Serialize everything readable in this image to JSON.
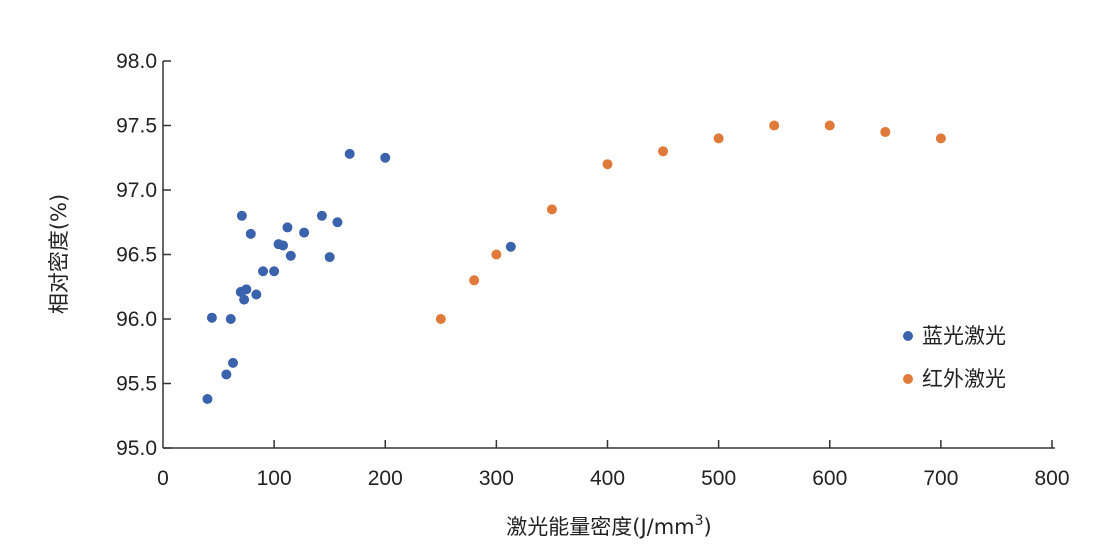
{
  "chart_data": {
    "type": "scatter",
    "title": "",
    "xlabel": "激光能量密度(J/mm",
    "xlabel_sup": "3",
    "xlabel_close": ")",
    "ylabel": "相对密度(%)",
    "xlim": [
      0,
      800
    ],
    "ylim": [
      95.0,
      98.0
    ],
    "x_ticks": [
      "0",
      "100",
      "200",
      "300",
      "400",
      "500",
      "600",
      "700",
      "800"
    ],
    "y_ticks": [
      "95.0",
      "95.5",
      "96.0",
      "96.5",
      "97.0",
      "97.5",
      "98.0"
    ],
    "grid": false,
    "legend_position": "right",
    "series": [
      {
        "name": "蓝光激光",
        "color": "#3b62ad",
        "points": [
          [
            40,
            95.38
          ],
          [
            44,
            96.01
          ],
          [
            57,
            95.57
          ],
          [
            61,
            96.0
          ],
          [
            63,
            95.66
          ],
          [
            70,
            96.21
          ],
          [
            71,
            96.8
          ],
          [
            73,
            96.15
          ],
          [
            75,
            96.23
          ],
          [
            79,
            96.66
          ],
          [
            84,
            96.19
          ],
          [
            90,
            96.37
          ],
          [
            100,
            96.37
          ],
          [
            104,
            96.58
          ],
          [
            108,
            96.57
          ],
          [
            112,
            96.71
          ],
          [
            115,
            96.49
          ],
          [
            127,
            96.67
          ],
          [
            143,
            96.8
          ],
          [
            150,
            96.48
          ],
          [
            157,
            96.75
          ],
          [
            168,
            97.28
          ],
          [
            200,
            97.25
          ],
          [
            313,
            96.56
          ]
        ]
      },
      {
        "name": "红外激光",
        "color": "#e07a3a",
        "points": [
          [
            250,
            96.0
          ],
          [
            280,
            96.3
          ],
          [
            300,
            96.5
          ],
          [
            350,
            96.85
          ],
          [
            400,
            97.2
          ],
          [
            450,
            97.3
          ],
          [
            500,
            97.4
          ],
          [
            550,
            97.5
          ],
          [
            600,
            97.5
          ],
          [
            650,
            97.45
          ],
          [
            700,
            97.4
          ]
        ]
      }
    ]
  }
}
